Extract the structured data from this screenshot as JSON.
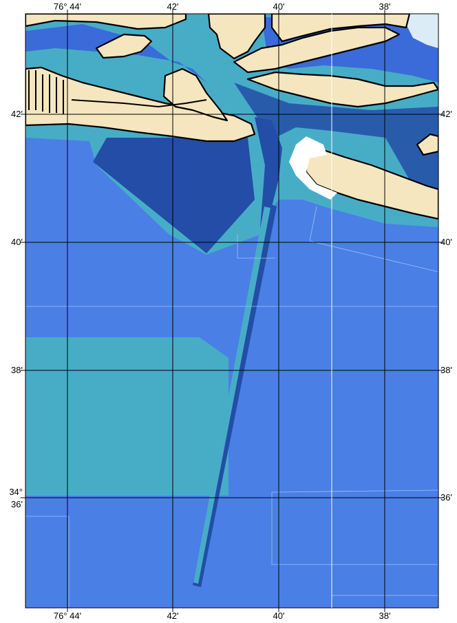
{
  "map": {
    "colors": {
      "land": "#f5e6bf",
      "deep_water": "#4a7fe6",
      "shallow_water": "#47adc7",
      "channel": "#234da6",
      "mid_channel": "#3a6bd8",
      "ice_area": "#dcecf6",
      "grid": "#000000"
    },
    "longitude_labels": [
      {
        "text": "76° 44'"
      },
      {
        "text": "42'"
      },
      {
        "text": "40'"
      },
      {
        "text": "38'"
      }
    ],
    "latitude_labels_left": [
      {
        "text": "42'"
      },
      {
        "text": "40'"
      },
      {
        "text": "38'"
      },
      {
        "text": "34°"
      },
      {
        "text": "36'"
      }
    ],
    "latitude_labels_right": [
      {
        "text": "42'"
      },
      {
        "text": "40'"
      },
      {
        "text": "38'"
      },
      {
        "text": "36'"
      }
    ]
  }
}
